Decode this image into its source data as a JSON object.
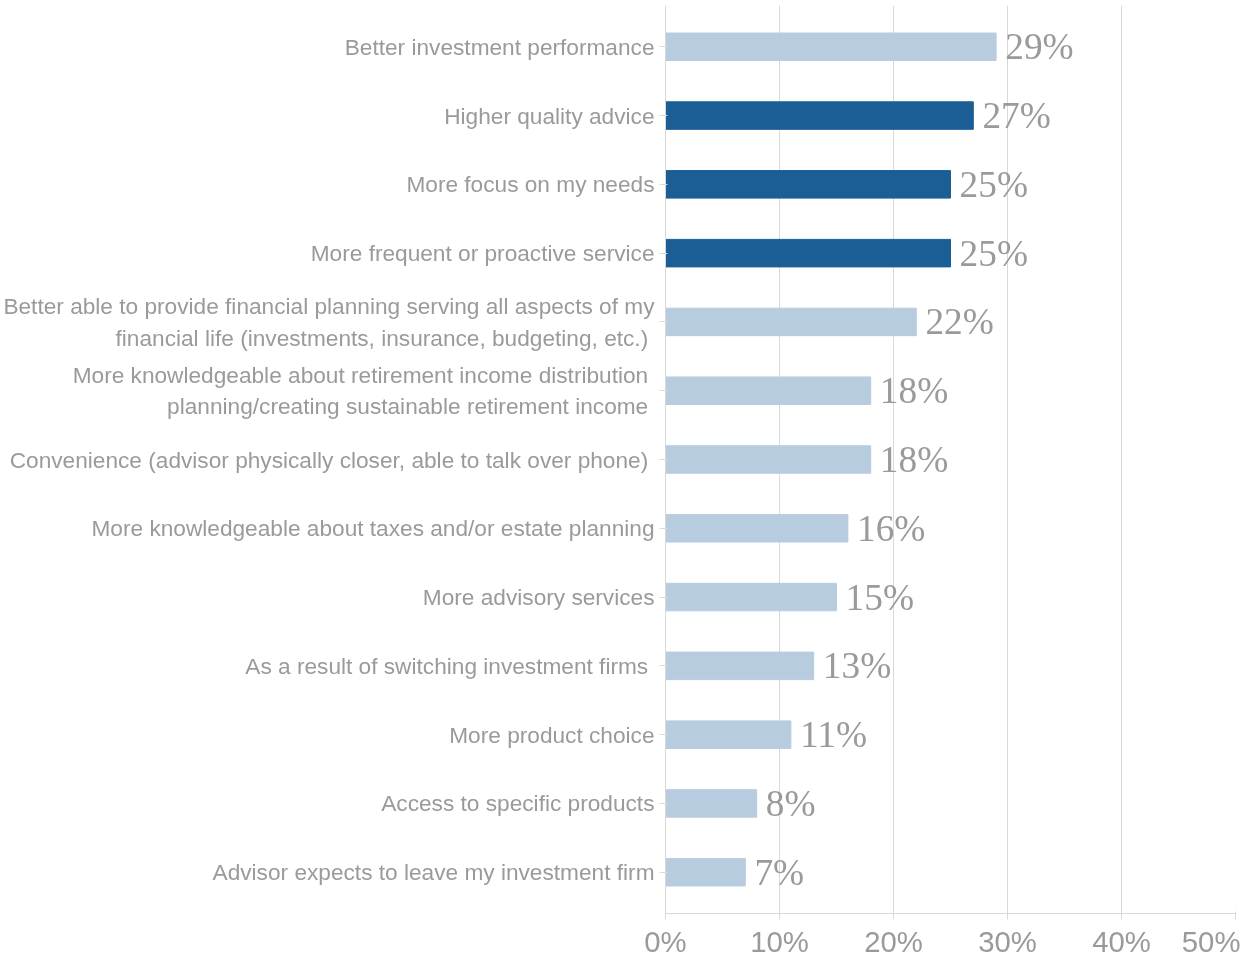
{
  "chart_data": {
    "type": "bar",
    "orientation": "horizontal",
    "categories": [
      "Better investment performance",
      "Higher quality advice",
      "More focus on my needs",
      "More frequent or proactive service",
      "Better able to provide financial planning serving all aspects of my\nfinancial life (investments, insurance,  budgeting, etc.)",
      "More knowledgeable about retirement  income distribution\nplanning/creating sustainable retirement  income",
      "Convenience  (advisor physically closer, able to talk over phone)",
      "More knowledgeable about taxes and/or estate planning",
      "More advisory services",
      "As a result  of switching investment firms",
      "More product choice",
      "Access to specific products",
      "Advisor expects to leave my investment firm"
    ],
    "values": [
      29,
      27,
      25,
      25,
      22,
      18,
      18,
      16,
      15,
      13,
      11,
      8,
      7
    ],
    "colors": [
      "#b8cce0",
      "#1b5e96",
      "#1b5e96",
      "#1b5e96",
      "#b8cce0",
      "#b8cce0",
      "#b8cce0",
      "#b8cce0",
      "#b8cce0",
      "#b8cce0",
      "#b8cce0",
      "#b8cce0",
      "#b8cce0"
    ],
    "value_labels": [
      "29%",
      "27%",
      "25%",
      "25%",
      "22%",
      "18%",
      "18%",
      "16%",
      "15%",
      "13%",
      "11%",
      "8%",
      "7%"
    ],
    "xlim": [
      0,
      50
    ],
    "xticks": [
      {
        "value": 0,
        "label": "0%"
      },
      {
        "value": 10,
        "label": "10%"
      },
      {
        "value": 20,
        "label": "20%"
      },
      {
        "value": 30,
        "label": "30%"
      },
      {
        "value": 40,
        "label": "40%"
      },
      {
        "value": 50,
        "label": "50%"
      }
    ],
    "grid": "x"
  }
}
